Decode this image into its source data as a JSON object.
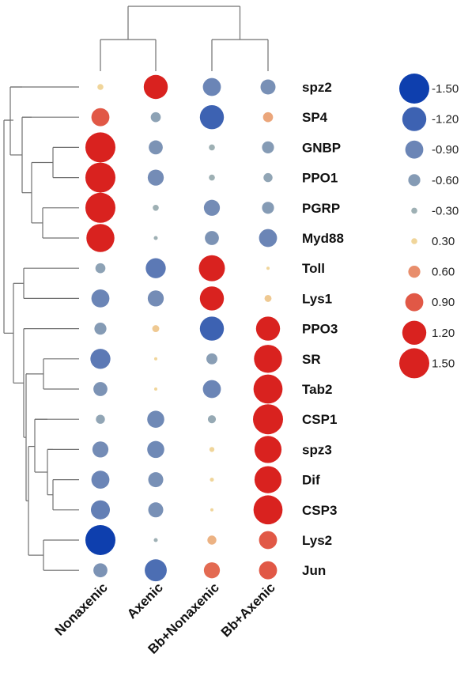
{
  "chart_data": {
    "type": "dotplot-heatmap",
    "title": "",
    "columns": [
      "Nonaxenic",
      "Axenic",
      "Bb+Nonaxenic",
      "Bb+Axenic"
    ],
    "rows": [
      "spz2",
      "SP4",
      "GNBP",
      "PPO1",
      "PGRP",
      "Myd88",
      "Toll",
      "Lys1",
      "PPO3",
      "SR",
      "Tab2",
      "CSP1",
      "spz3",
      "Dif",
      "CSP3",
      "Lys2",
      "Jun"
    ],
    "values": [
      [
        0.3,
        1.2,
        -0.9,
        -0.75
      ],
      [
        0.9,
        -0.5,
        -1.2,
        0.5
      ],
      [
        1.5,
        -0.7,
        -0.3,
        -0.6
      ],
      [
        1.5,
        -0.8,
        -0.3,
        -0.45
      ],
      [
        1.5,
        -0.3,
        -0.8,
        -0.6
      ],
      [
        1.4,
        -0.2,
        -0.7,
        -0.9
      ],
      [
        -0.5,
        -1.0,
        1.3,
        0.1
      ],
      [
        -0.9,
        -0.8,
        1.2,
        0.35
      ],
      [
        -0.6,
        0.35,
        -1.2,
        1.2
      ],
      [
        -1.0,
        0.05,
        -0.55,
        1.4
      ],
      [
        -0.7,
        0.05,
        -0.9,
        1.45
      ],
      [
        -0.45,
        -0.85,
        -0.4,
        1.55
      ],
      [
        -0.8,
        -0.85,
        0.25,
        1.35
      ],
      [
        -0.9,
        -0.75,
        0.2,
        1.35
      ],
      [
        -0.95,
        -0.75,
        0.15,
        1.45
      ],
      [
        -1.5,
        -0.2,
        0.45,
        0.9
      ],
      [
        -0.7,
        -1.1,
        0.8,
        0.9
      ]
    ],
    "legend": {
      "placement": "right",
      "values": [
        -1.5,
        -1.2,
        -0.9,
        -0.6,
        -0.3,
        0.3,
        0.6,
        0.9,
        1.2,
        1.5
      ],
      "labels": [
        "-1.50",
        "-1.20",
        "-0.90",
        "-0.60",
        "-0.30",
        "0.30",
        "0.60",
        "0.90",
        "1.20",
        "1.50"
      ]
    },
    "color_scale": {
      "neg_max": "#0e3fae",
      "neg_mid": "#6b85b6",
      "neg_low": "#9eb0b4",
      "pos_low": "#f0d59a",
      "pos_mid": "#e88e6c",
      "pos_max": "#d9221f"
    }
  }
}
